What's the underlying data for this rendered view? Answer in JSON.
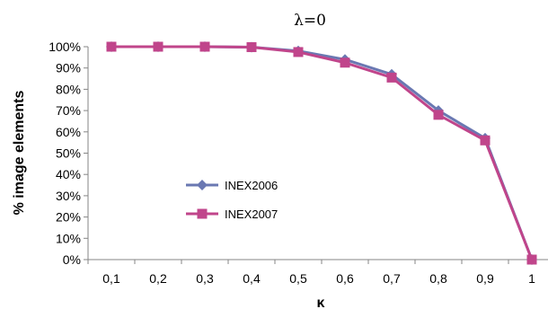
{
  "chart_data": {
    "type": "line",
    "title": "λ=0",
    "xlabel": "κ",
    "ylabel": "% image elements",
    "categories": [
      "0,1",
      "0,2",
      "0,3",
      "0,4",
      "0,5",
      "0,6",
      "0,7",
      "0,8",
      "0,9",
      "1"
    ],
    "y_ticks": [
      "0%",
      "10%",
      "20%",
      "30%",
      "40%",
      "50%",
      "60%",
      "70%",
      "80%",
      "90%",
      "100%"
    ],
    "ylim": [
      0,
      100
    ],
    "grid": false,
    "legend_position": "center-left",
    "series": [
      {
        "name": "INEX2006",
        "color": "#6A78B2",
        "marker": "diamond",
        "values": [
          100,
          100,
          100,
          99.8,
          98,
          94,
          87,
          70,
          57,
          0
        ]
      },
      {
        "name": "INEX2007",
        "color": "#C0458B",
        "marker": "square",
        "values": [
          100,
          100,
          100,
          99.8,
          97.5,
          92.5,
          85.5,
          68,
          56,
          0
        ]
      }
    ]
  }
}
